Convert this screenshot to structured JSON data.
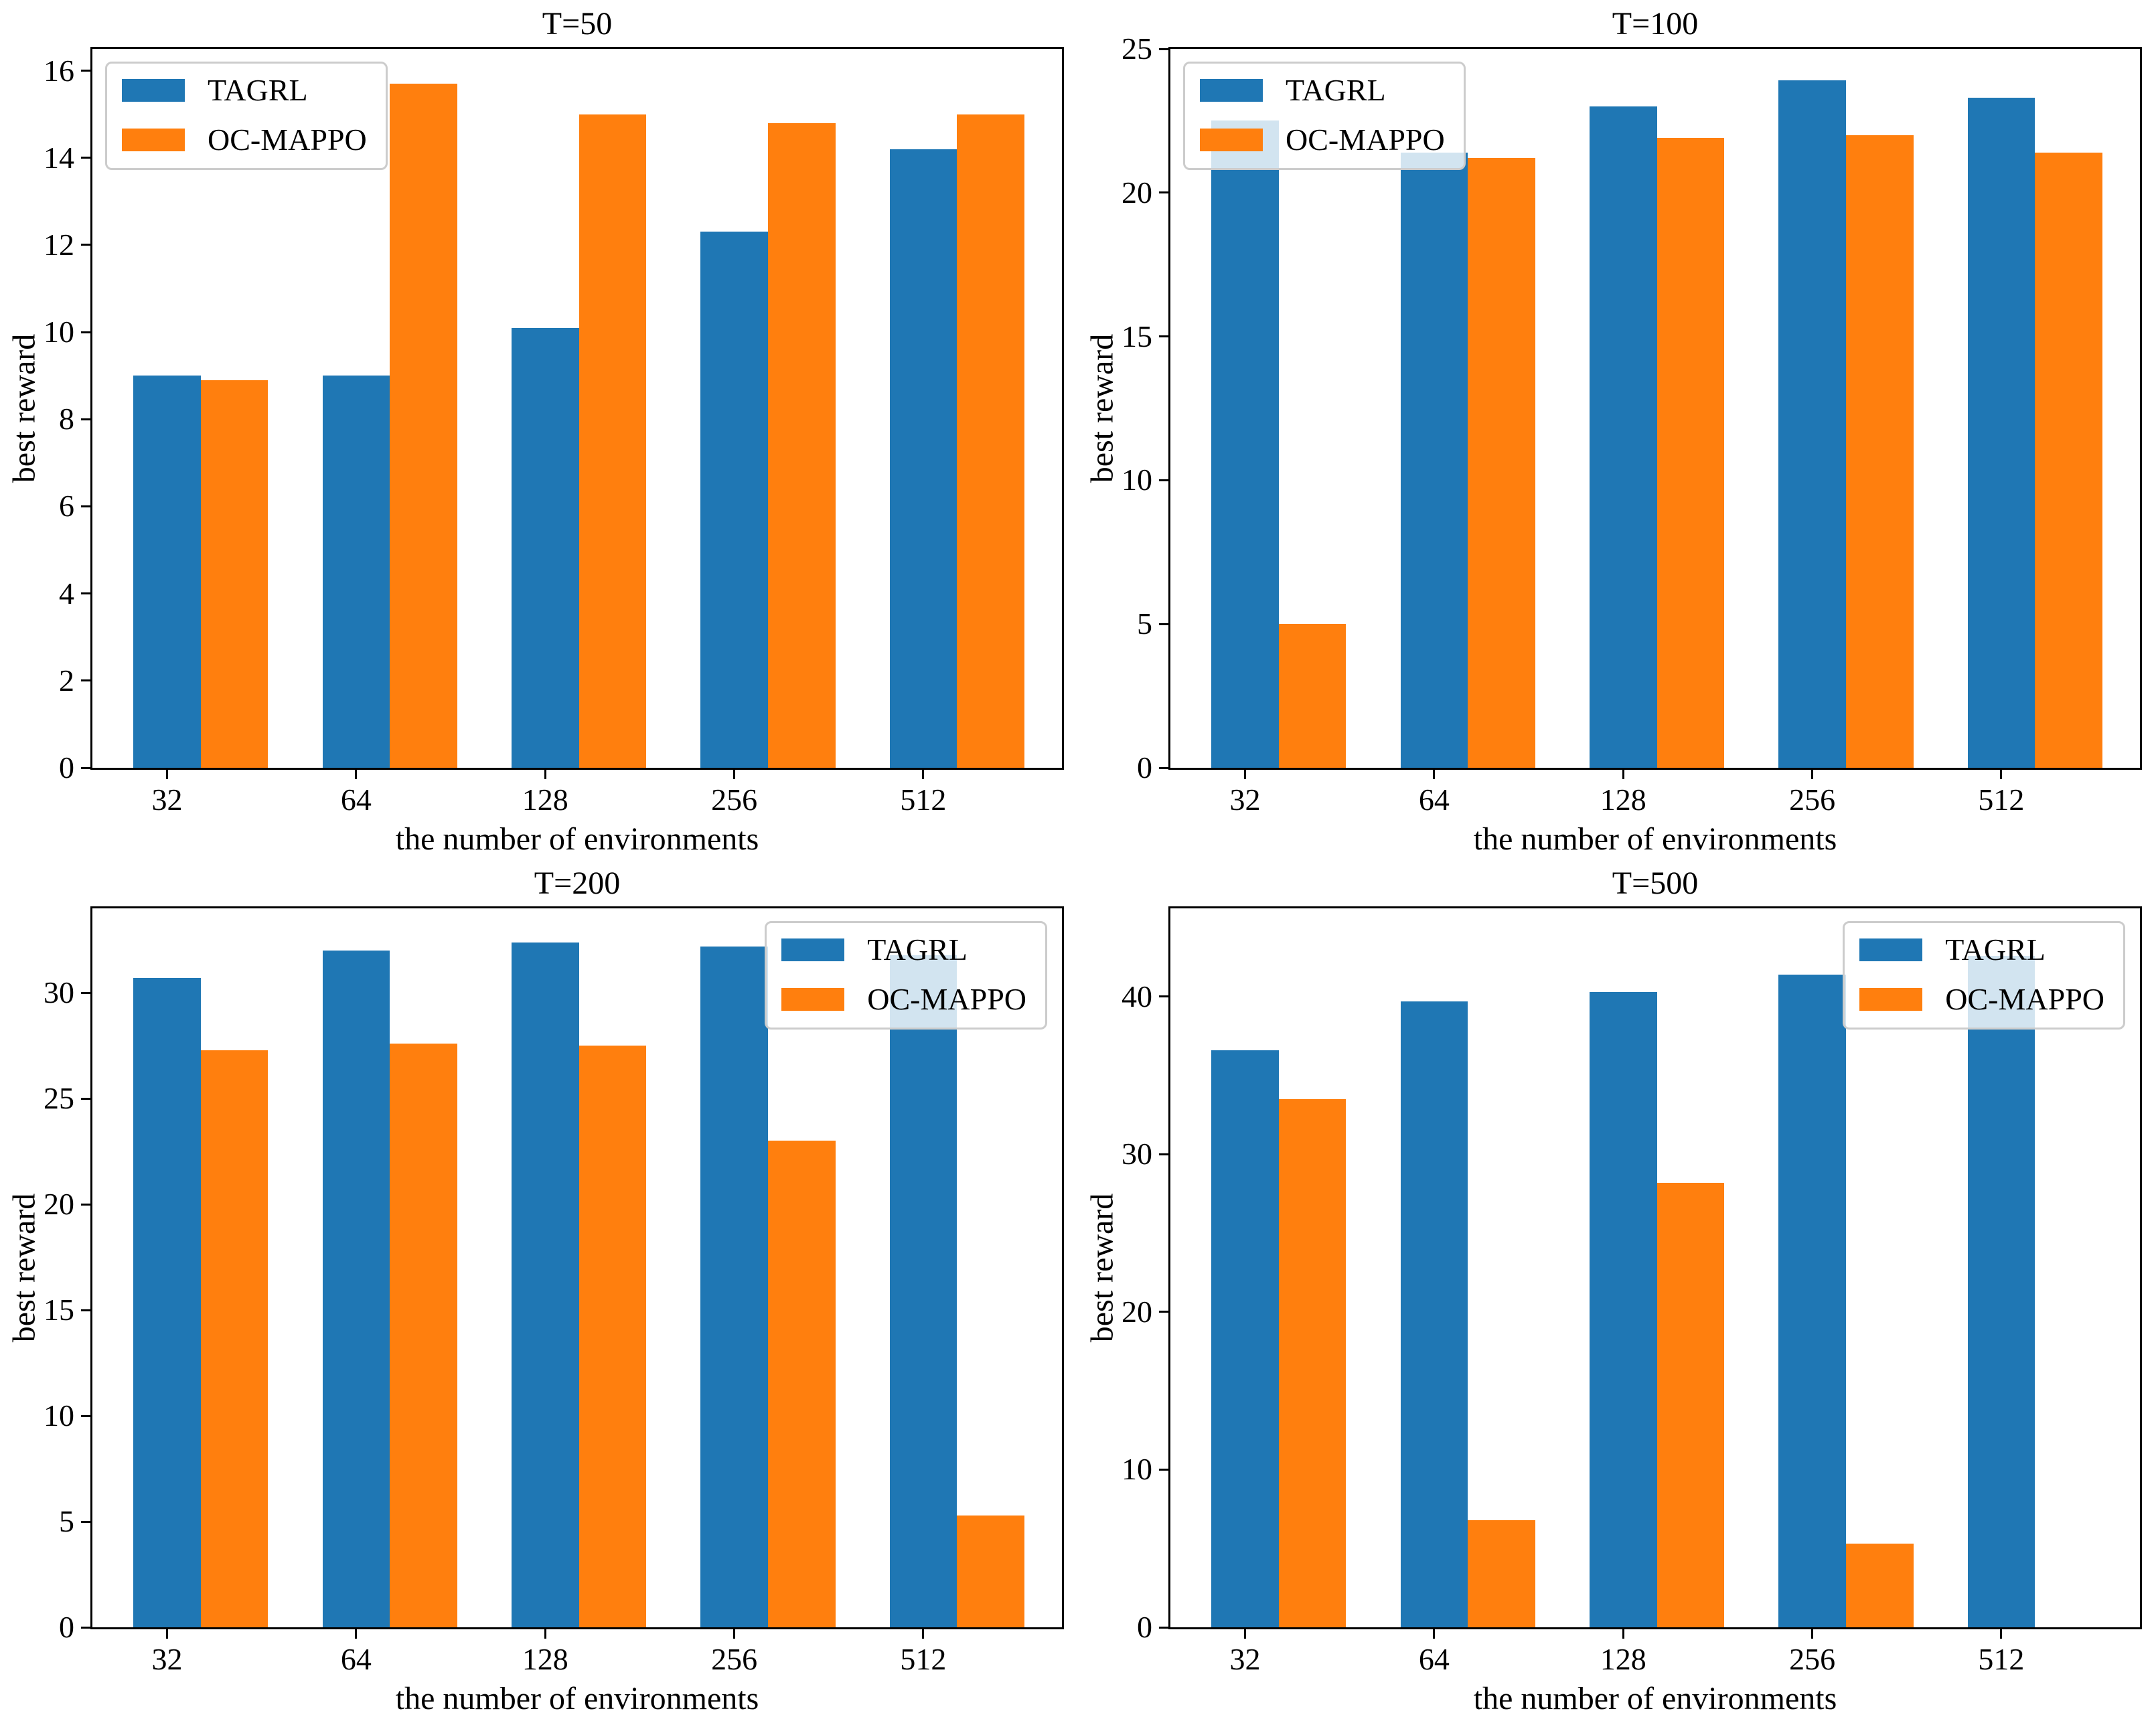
{
  "chart_data": [
    {
      "type": "bar",
      "title": "T=50",
      "xlabel": "the number of environments",
      "ylabel": "best reward",
      "categories": [
        "32",
        "64",
        "128",
        "256",
        "512"
      ],
      "series": [
        {
          "name": "TAGRL",
          "color": "#1f77b4",
          "values": [
            9.0,
            9.0,
            10.1,
            12.3,
            14.2
          ]
        },
        {
          "name": "OC-MAPPO",
          "color": "#ff7f0e",
          "values": [
            8.9,
            15.7,
            15.0,
            14.8,
            15.0
          ]
        }
      ],
      "ylim": [
        0,
        16.5
      ],
      "yticks": [
        0,
        2,
        4,
        6,
        8,
        10,
        12,
        14,
        16
      ],
      "grid": false,
      "legend": {
        "position": "upper-left"
      }
    },
    {
      "type": "bar",
      "title": "T=100",
      "xlabel": "the number of environments",
      "ylabel": "best reward",
      "categories": [
        "32",
        "64",
        "128",
        "256",
        "512"
      ],
      "series": [
        {
          "name": "TAGRL",
          "color": "#1f77b4",
          "values": [
            22.5,
            21.4,
            23.0,
            23.9,
            23.3
          ]
        },
        {
          "name": "OC-MAPPO",
          "color": "#ff7f0e",
          "values": [
            5.0,
            21.2,
            21.9,
            22.0,
            21.4
          ]
        }
      ],
      "ylim": [
        0,
        25
      ],
      "yticks": [
        0,
        5,
        10,
        15,
        20,
        25
      ],
      "grid": false,
      "legend": {
        "position": "upper-left"
      }
    },
    {
      "type": "bar",
      "title": "T=200",
      "xlabel": "the number of environments",
      "ylabel": "best reward",
      "categories": [
        "32",
        "64",
        "128",
        "256",
        "512"
      ],
      "series": [
        {
          "name": "TAGRL",
          "color": "#1f77b4",
          "values": [
            30.7,
            32.0,
            32.4,
            32.2,
            31.8
          ]
        },
        {
          "name": "OC-MAPPO",
          "color": "#ff7f0e",
          "values": [
            27.3,
            27.6,
            27.5,
            23.0,
            5.3
          ]
        }
      ],
      "ylim": [
        0,
        34
      ],
      "yticks": [
        0,
        5,
        10,
        15,
        20,
        25,
        30
      ],
      "grid": false,
      "legend": {
        "position": "upper-right"
      }
    },
    {
      "type": "bar",
      "title": "T=500",
      "xlabel": "the number of environments",
      "ylabel": "best reward",
      "categories": [
        "32",
        "64",
        "128",
        "256",
        "512"
      ],
      "series": [
        {
          "name": "TAGRL",
          "color": "#1f77b4",
          "values": [
            36.6,
            39.7,
            40.3,
            41.4,
            42.6
          ]
        },
        {
          "name": "OC-MAPPO",
          "color": "#ff7f0e",
          "values": [
            33.5,
            6.8,
            28.2,
            5.3,
            null
          ]
        }
      ],
      "ylim": [
        0,
        45.6
      ],
      "yticks": [
        0,
        10,
        20,
        30,
        40
      ],
      "grid": false,
      "legend": {
        "position": "upper-right"
      }
    }
  ]
}
